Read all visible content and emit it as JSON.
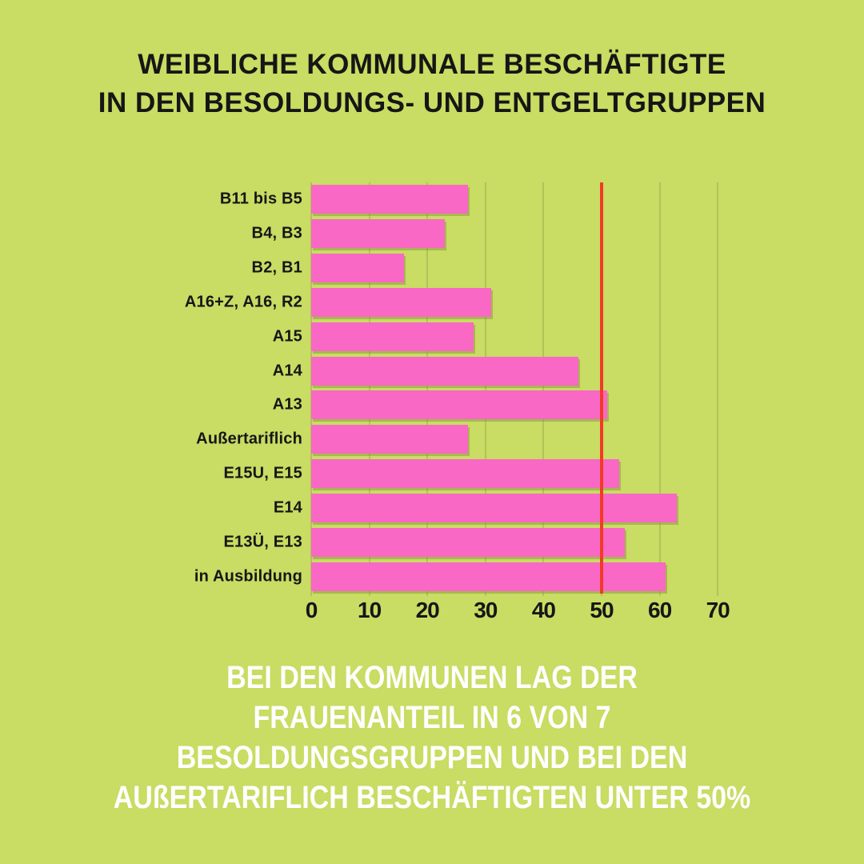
{
  "title": {
    "line1": "WEIBLICHE KOMMUNALE BESCHÄFTIGTE",
    "line2": "IN DEN BESOLDUNGS- UND ENTGELTGRUPPEN"
  },
  "chart_data": {
    "type": "bar",
    "orientation": "horizontal",
    "title": "WEIBLICHE KOMMUNALE BESCHÄFTIGTE IN DEN BESOLDUNGS- UND ENTGELTGRUPPEN",
    "categories": [
      "B11 bis B5",
      "B4, B3",
      "B2, B1",
      "A16+Z, A16, R2",
      "A15",
      "A14",
      "A13",
      "Außertariflich",
      "E15U, E15",
      "E14",
      "E13Ü, E13",
      "in Ausbildung"
    ],
    "values": [
      27,
      23,
      16,
      31,
      28,
      46,
      51,
      27,
      53,
      63,
      54,
      61
    ],
    "xlabel": "",
    "ylabel": "",
    "xlim": [
      0,
      70
    ],
    "xticks": [
      0,
      10,
      20,
      30,
      40,
      50,
      60,
      70
    ],
    "xtick_labels": [
      "0",
      "10",
      "20",
      "30",
      "40",
      "50",
      "60",
      "70"
    ],
    "grid": true,
    "legend": false,
    "reference_line": {
      "value": 50
    }
  },
  "caption": {
    "line1": "BEI DEN KOMMUNEN LAG DER",
    "line2": "FRAUENANTEIL IN 6 VON 7",
    "line3": "BESOLDUNGSGRUPPEN UND BEI DEN",
    "line4": "AUßERTARIFLICH BESCHÄFTIGTEN UNTER 50%"
  },
  "colors": {
    "background": "#c9dc63",
    "bar": "#f968c4",
    "reference_line": "#f23a26",
    "gridline": "#b3c25c",
    "title_text": "#161616",
    "caption_text": "#ffffff"
  }
}
